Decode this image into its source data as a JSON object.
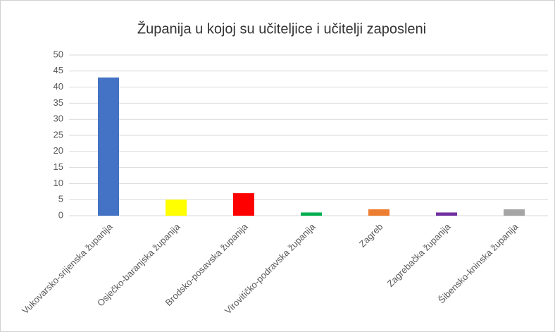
{
  "chart_data": {
    "type": "bar",
    "title": "Županija u kojoj su učiteljice i učitelji zaposleni",
    "categories": [
      "Vukovarsko-srijenska županija",
      "Osječko-baranjska županija",
      "Brodsko-posavska županija",
      "Virovitičko-podravska županija",
      "Zagreb",
      "Zagrebačka županija",
      "Šibensko-kninska županija"
    ],
    "values": [
      43,
      5,
      7,
      1,
      2,
      1,
      2
    ],
    "colors": [
      "#4472c4",
      "#ffff00",
      "#ff0000",
      "#00b050",
      "#ed7d31",
      "#7030a0",
      "#a5a5a5"
    ],
    "ylim": [
      0,
      50
    ],
    "yticks": [
      0,
      5,
      10,
      15,
      20,
      25,
      30,
      35,
      40,
      45,
      50
    ],
    "grid": true
  }
}
